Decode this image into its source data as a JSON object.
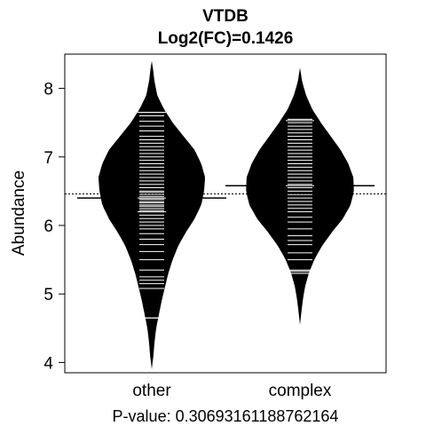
{
  "chart_data": {
    "type": "beanplot",
    "title": "VTDB",
    "subtitle": "Log2(FC)=0.1426",
    "ylabel": "Abundance",
    "xlabel": "",
    "footer": "P-value: 0.30693161188762164",
    "ylim": [
      3.85,
      8.5
    ],
    "yticks": [
      4,
      5,
      6,
      7,
      8
    ],
    "overall_mean": 6.46,
    "grid": false,
    "legend": "none",
    "fill_color": "#000000",
    "line_color": "#ffffff",
    "groups": [
      {
        "label": "other",
        "mean": 6.4,
        "min": 3.9,
        "max": 8.4,
        "density": [
          [
            3.9,
            0.0
          ],
          [
            4.1,
            0.03
          ],
          [
            4.3,
            0.05
          ],
          [
            4.5,
            0.08
          ],
          [
            4.7,
            0.13
          ],
          [
            4.9,
            0.18
          ],
          [
            5.1,
            0.24
          ],
          [
            5.3,
            0.3
          ],
          [
            5.5,
            0.38
          ],
          [
            5.7,
            0.48
          ],
          [
            5.9,
            0.62
          ],
          [
            6.1,
            0.78
          ],
          [
            6.3,
            0.9
          ],
          [
            6.5,
            0.95
          ],
          [
            6.7,
            0.97
          ],
          [
            6.9,
            0.9
          ],
          [
            7.1,
            0.78
          ],
          [
            7.3,
            0.58
          ],
          [
            7.5,
            0.38
          ],
          [
            7.7,
            0.22
          ],
          [
            7.9,
            0.1
          ],
          [
            8.1,
            0.05
          ],
          [
            8.3,
            0.02
          ],
          [
            8.4,
            0.0
          ]
        ],
        "observations": [
          4.65,
          5.08,
          5.15,
          5.2,
          5.25,
          5.35,
          5.5,
          5.62,
          5.72,
          5.8,
          5.88,
          5.95,
          6.0,
          6.05,
          6.1,
          6.15,
          6.2,
          6.22,
          6.25,
          6.28,
          6.3,
          6.33,
          6.35,
          6.38,
          6.4,
          6.42,
          6.45,
          6.48,
          6.5,
          6.55,
          6.6,
          6.65,
          6.7,
          6.75,
          6.8,
          6.85,
          6.9,
          6.95,
          7.0,
          7.05,
          7.1,
          7.15,
          7.2,
          7.25,
          7.3,
          7.38,
          7.45,
          7.52,
          7.6,
          7.65
        ],
        "highlight_lines": [
          4.65,
          6.2,
          7.65
        ]
      },
      {
        "label": "complex",
        "mean": 6.58,
        "min": 4.55,
        "max": 8.3,
        "density": [
          [
            4.55,
            0.0
          ],
          [
            4.7,
            0.02
          ],
          [
            4.9,
            0.05
          ],
          [
            5.1,
            0.09
          ],
          [
            5.3,
            0.16
          ],
          [
            5.5,
            0.26
          ],
          [
            5.7,
            0.4
          ],
          [
            5.9,
            0.58
          ],
          [
            6.1,
            0.78
          ],
          [
            6.3,
            0.92
          ],
          [
            6.5,
            0.98
          ],
          [
            6.7,
            0.97
          ],
          [
            6.9,
            0.88
          ],
          [
            7.1,
            0.74
          ],
          [
            7.3,
            0.56
          ],
          [
            7.5,
            0.38
          ],
          [
            7.7,
            0.22
          ],
          [
            7.9,
            0.11
          ],
          [
            8.1,
            0.04
          ],
          [
            8.3,
            0.0
          ]
        ],
        "observations": [
          5.3,
          5.35,
          5.5,
          5.6,
          5.72,
          5.78,
          5.85,
          5.95,
          6.05,
          6.12,
          6.2,
          6.25,
          6.3,
          6.35,
          6.4,
          6.45,
          6.5,
          6.55,
          6.6,
          6.65,
          6.7,
          6.75,
          6.8,
          6.85,
          6.9,
          6.95,
          7.0,
          7.05,
          7.1,
          7.15,
          7.2,
          7.25,
          7.3,
          7.35,
          7.4,
          7.45,
          7.5,
          7.55
        ],
        "highlight_lines": [
          5.33,
          7.53
        ]
      }
    ]
  }
}
